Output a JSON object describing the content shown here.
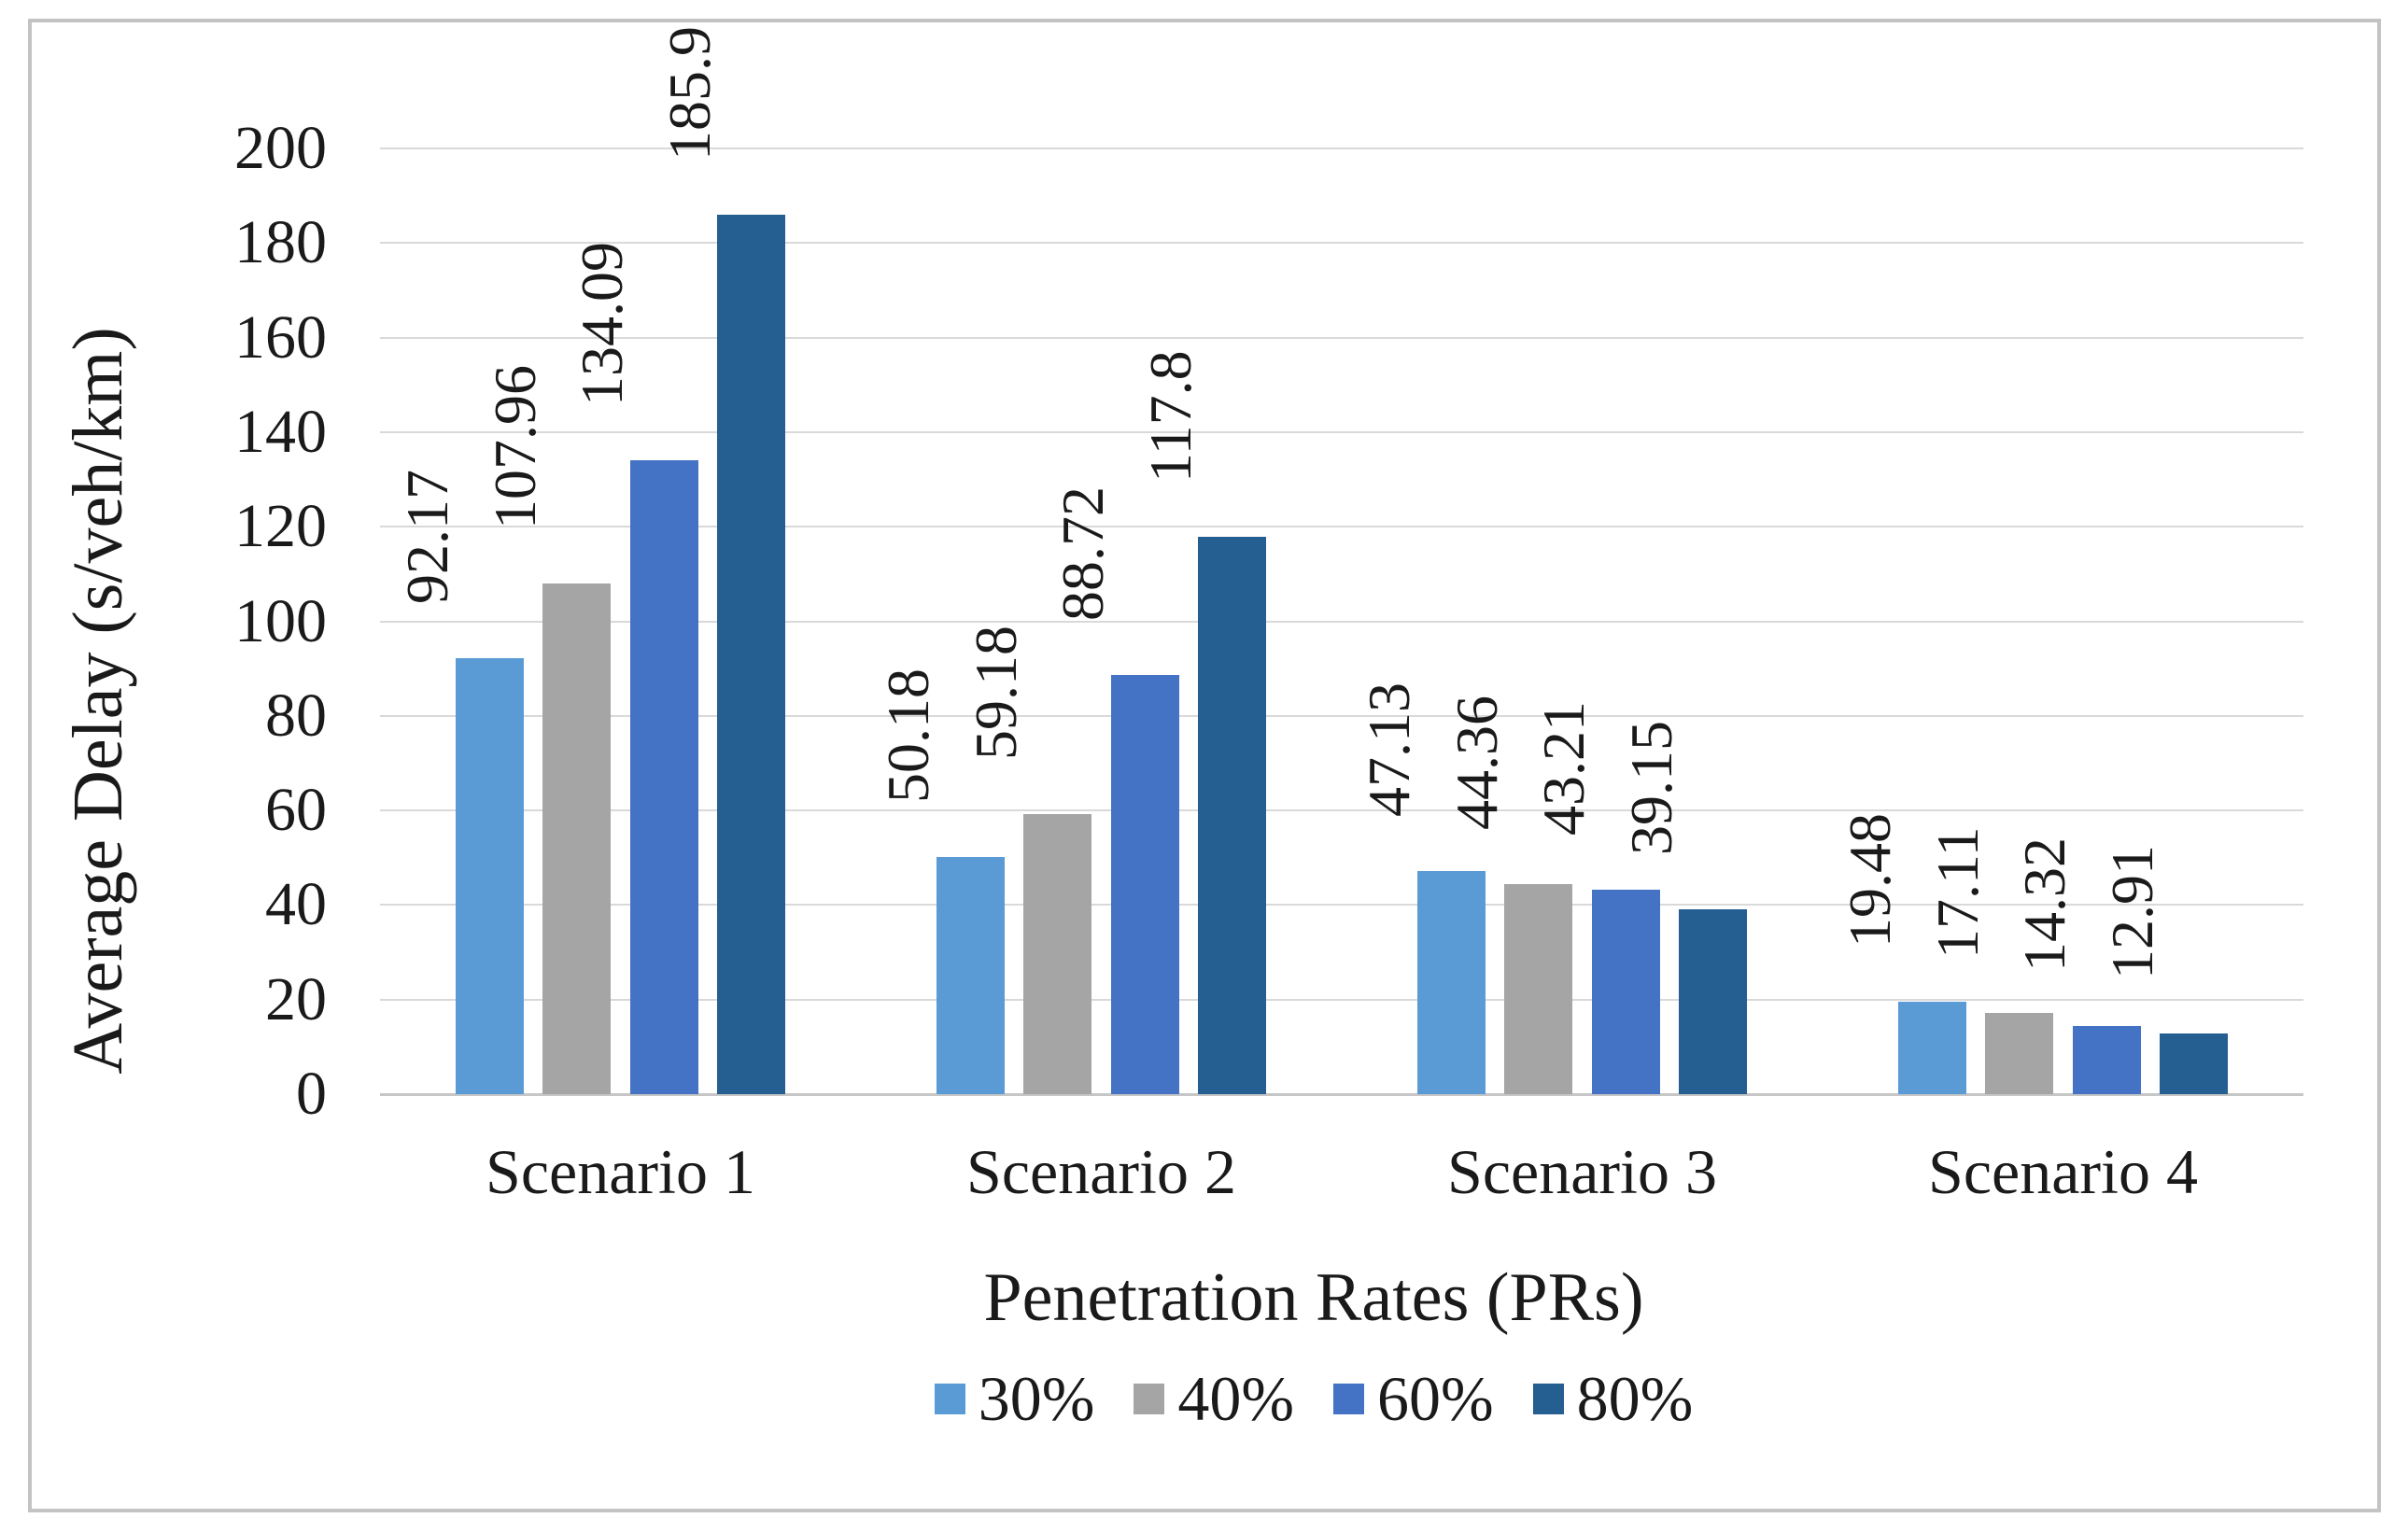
{
  "chart_data": {
    "type": "bar",
    "title": "",
    "categories": [
      "Scenario 1",
      "Scenario 2",
      "Scenario 3",
      "Scenario 4"
    ],
    "series": [
      {
        "name": "30%",
        "color": "#5B9BD5",
        "values": [
          92.17,
          50.18,
          47.13,
          19.48
        ],
        "labels": [
          "92.17",
          "50.18",
          "47.13",
          "19.48"
        ]
      },
      {
        "name": "40%",
        "color": "#A5A5A5",
        "values": [
          107.96,
          59.18,
          44.36,
          17.11
        ],
        "labels": [
          "107.96",
          "59.18",
          "44.36",
          "17.11"
        ]
      },
      {
        "name": "60%",
        "color": "#4472C4",
        "values": [
          134.09,
          88.72,
          43.21,
          14.32
        ],
        "labels": [
          "134.09",
          "88.72",
          "43.21",
          "14.32"
        ]
      },
      {
        "name": "80%",
        "color": "#255E91",
        "values": [
          185.9,
          117.8,
          39.15,
          12.91
        ],
        "labels": [
          "185.9",
          "117.8",
          "39.15",
          "12.91"
        ]
      }
    ],
    "xlabel": "Penetration Rates (PRs)",
    "ylabel": "Average Delay (s/veh/km)",
    "ylim": [
      0,
      200
    ],
    "ytick_step": 20,
    "yticks": [
      0,
      20,
      40,
      60,
      80,
      100,
      120,
      140,
      160,
      180,
      200
    ],
    "grid": "horizontal",
    "legend_position": "bottom",
    "data_label_rotation": -90,
    "colors": {
      "gridline": "#D9D9D9",
      "axis_line": "#C6C6C6",
      "frame_border": "#C3C3C3",
      "text": "#1A1A1A",
      "background": "#FFFFFF"
    }
  }
}
